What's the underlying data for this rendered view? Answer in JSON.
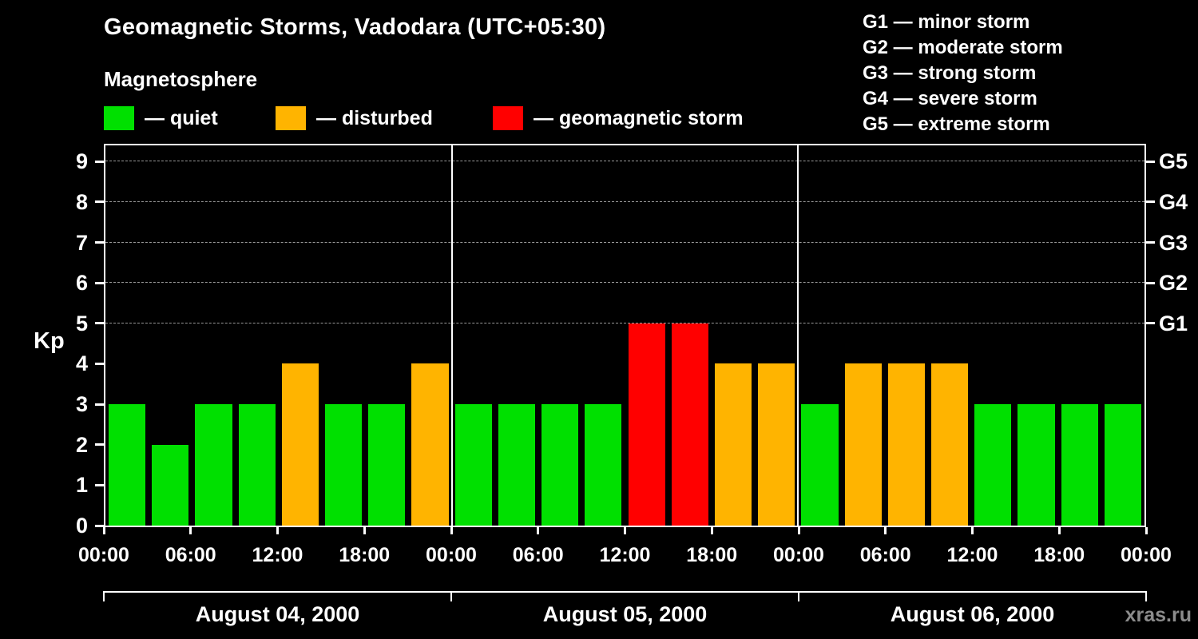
{
  "title": "Geomagnetic Storms, Vadodara (UTC+05:30)",
  "subtitle": "Magnetosphere",
  "legend": [
    {
      "key": "quiet",
      "label": "— quiet"
    },
    {
      "key": "disturbed",
      "label": "— disturbed"
    },
    {
      "key": "storm",
      "label": "— geomagnetic storm"
    }
  ],
  "storm_scale": [
    "G1 — minor storm",
    "G2 — moderate storm",
    "G3 — strong storm",
    "G4 — severe storm",
    "G5 — extreme storm"
  ],
  "watermark": "xras.ru",
  "colors": {
    "background": "#000000",
    "quiet": "#00e000",
    "disturbed": "#ffb400",
    "storm": "#ff0000",
    "axis": "#ffffff",
    "grid": "#999999",
    "text": "#ffffff",
    "watermark": "#8c8c8c"
  },
  "chart_data": {
    "type": "bar",
    "title": "Geomagnetic Storms, Vadodara (UTC+05:30)",
    "ylabel": "Kp",
    "ylim": [
      0,
      9.4
    ],
    "yticks": [
      0,
      1,
      2,
      3,
      4,
      5,
      6,
      7,
      8,
      9
    ],
    "right_axis": [
      {
        "kp": 5,
        "label": "G1"
      },
      {
        "kp": 6,
        "label": "G2"
      },
      {
        "kp": 7,
        "label": "G3"
      },
      {
        "kp": 8,
        "label": "G4"
      },
      {
        "kp": 9,
        "label": "G5"
      }
    ],
    "gridlines_kp": [
      5,
      6,
      7,
      8,
      9
    ],
    "x_tick_labels": [
      "00:00",
      "06:00",
      "12:00",
      "18:00",
      "00:00",
      "06:00",
      "12:00",
      "18:00",
      "00:00",
      "06:00",
      "12:00",
      "18:00",
      "00:00"
    ],
    "bar_interval_hours": 3,
    "days": [
      {
        "date": "August 04, 2000",
        "kp_values": [
          3,
          2,
          3,
          3,
          4,
          3,
          3,
          4
        ]
      },
      {
        "date": "August 05, 2000",
        "kp_values": [
          3,
          3,
          3,
          3,
          5,
          5,
          4,
          4
        ]
      },
      {
        "date": "August 06, 2000",
        "kp_values": [
          3,
          4,
          4,
          4,
          3,
          3,
          3,
          3
        ]
      }
    ],
    "color_rule": {
      "quiet": "kp<=3",
      "disturbed": "kp==4",
      "storm": "kp>=5"
    },
    "legend_position": "top-left",
    "grid": "dashed-at-G-levels-only"
  }
}
